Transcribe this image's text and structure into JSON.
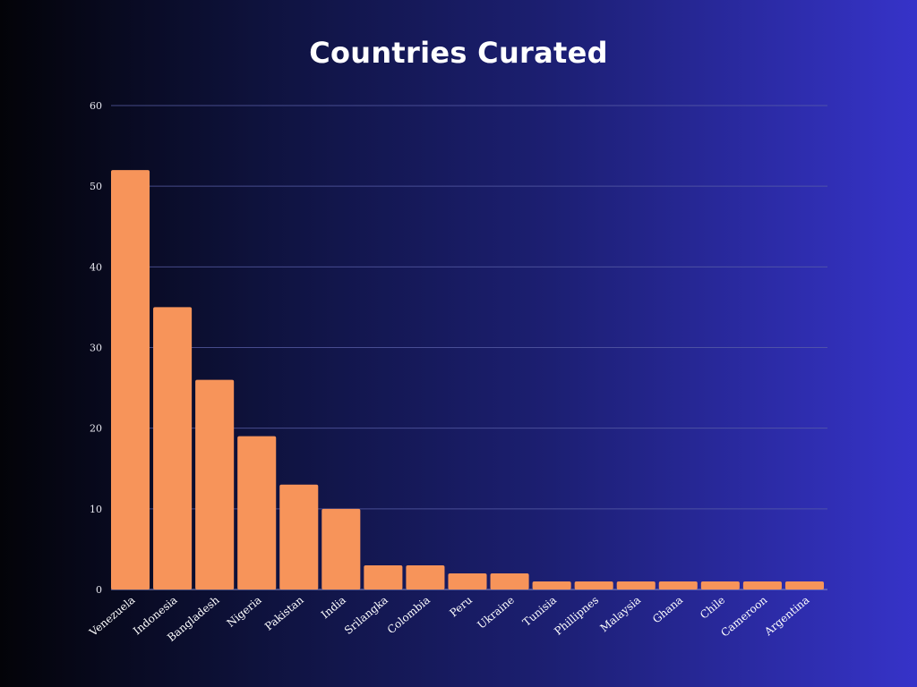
{
  "chart_data": {
    "type": "bar",
    "title": "Countries Curated",
    "xlabel": "",
    "ylabel": "",
    "ylim": [
      0,
      60
    ],
    "yticks": [
      0,
      10,
      20,
      30,
      40,
      50,
      60
    ],
    "grid": true,
    "categories": [
      "Venezuela",
      "Indonesia",
      "Bangladesh",
      "Nigeria",
      "Pakistan",
      "India",
      "Srilangka",
      "Colombia",
      "Peru",
      "Ukraine",
      "Tunisia",
      "Phillipnes",
      "Malaysia",
      "Ghana",
      "Chile",
      "Cameroon",
      "Argentina"
    ],
    "values": [
      52,
      35,
      26,
      19,
      13,
      10,
      3,
      3,
      2,
      2,
      1,
      1,
      1,
      1,
      1,
      1,
      1
    ],
    "bar_color": "#f7945a",
    "grid_color": "#5a5fa8"
  }
}
